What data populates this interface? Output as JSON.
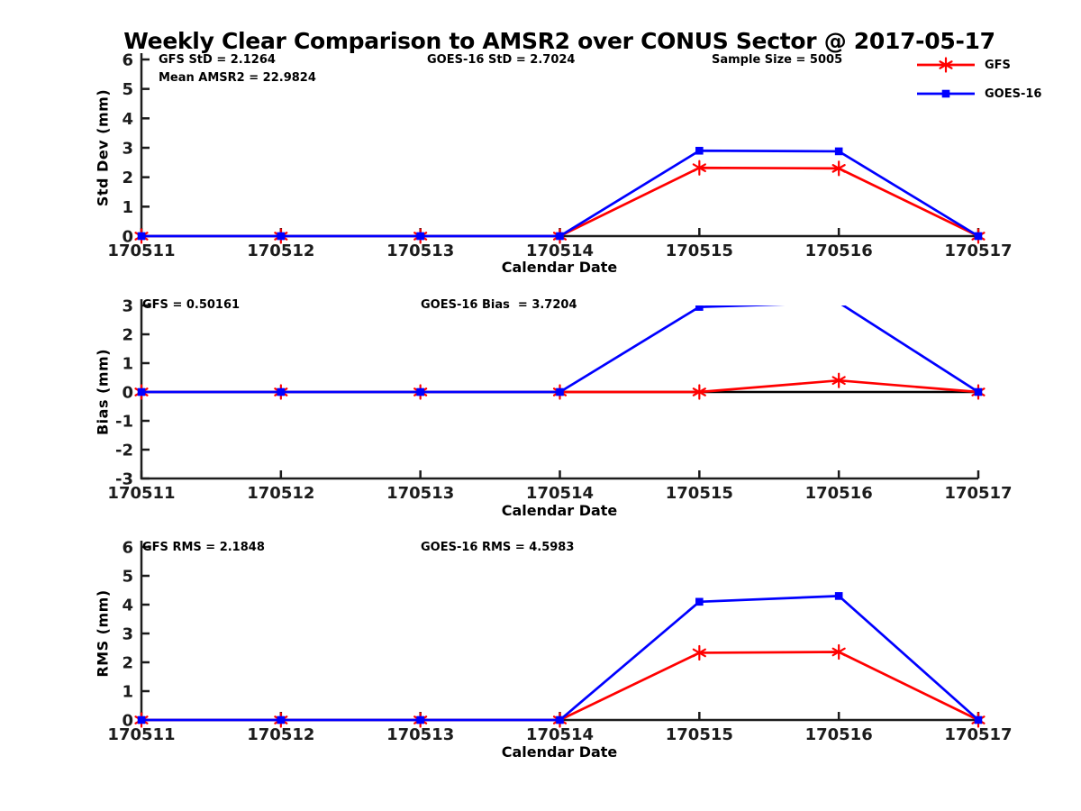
{
  "title": "Weekly Clear Comparison to AMSR2 over CONUS Sector @ 2017-05-17",
  "colors": {
    "gfs": "#ff0000",
    "goes16": "#0000ff",
    "axis": "#1c1c1c",
    "zero_line": "#000000",
    "background": "#ffffff"
  },
  "legend": {
    "entries": [
      {
        "label": "GFS",
        "color": "#ff0000",
        "marker": "asterisk"
      },
      {
        "label": "GOES-16",
        "color": "#0000ff",
        "marker": "square"
      }
    ]
  },
  "x_axis": {
    "label": "Calendar Date",
    "categories": [
      "170511",
      "170512",
      "170513",
      "170514",
      "170515",
      "170516",
      "170517"
    ]
  },
  "stats": {
    "gfs_std": 2.1264,
    "mean_amsr2": 22.9824,
    "goes16_std": 2.7024,
    "sample_size": 5005,
    "gfs_bias": 0.50161,
    "goes16_bias": 3.7204,
    "gfs_rms": 2.1848,
    "goes16_rms": 4.5983
  },
  "chart_data": [
    {
      "type": "line",
      "name": "std-dev",
      "ylabel": "Std Dev (mm)",
      "xlabel": "Calendar Date",
      "ylim": [
        0,
        6
      ],
      "yticks": [
        0,
        1,
        2,
        3,
        4,
        5,
        6
      ],
      "grid": false,
      "zero_line": false,
      "legend_position": "upper-right-outside",
      "annotations": [
        {
          "text": "GFS StD = 2.1264"
        },
        {
          "text": "Mean AMSR2 = 22.9824"
        },
        {
          "text": "GOES-16 StD = 2.7024"
        },
        {
          "text": "Sample Size = 5005"
        }
      ],
      "series": [
        {
          "name": "GFS",
          "color": "#ff0000",
          "marker": "asterisk",
          "values": [
            0,
            0,
            0,
            0,
            2.32,
            2.3,
            0
          ]
        },
        {
          "name": "GOES-16",
          "color": "#0000ff",
          "marker": "square",
          "values": [
            0,
            0,
            0,
            0,
            2.9,
            2.88,
            0
          ]
        }
      ]
    },
    {
      "type": "line",
      "name": "bias",
      "ylabel": "Bias (mm)",
      "xlabel": "Calendar Date",
      "ylim": [
        -3,
        3
      ],
      "yticks": [
        -3,
        -2,
        -1,
        0,
        1,
        2,
        3
      ],
      "grid": false,
      "zero_line": true,
      "annotations": [
        {
          "text": "GFS = 0.50161"
        },
        {
          "text": "GOES-16 Bias  = 3.7204"
        }
      ],
      "series": [
        {
          "name": "GFS",
          "color": "#ff0000",
          "marker": "asterisk",
          "values": [
            0,
            0,
            0,
            0,
            0,
            0.4,
            0
          ]
        },
        {
          "name": "GOES-16",
          "color": "#0000ff",
          "marker": "square",
          "values": [
            0,
            0,
            0,
            0,
            2.95,
            3.1,
            0
          ]
        }
      ]
    },
    {
      "type": "line",
      "name": "rms",
      "ylabel": "RMS (mm)",
      "xlabel": "Calendar Date",
      "ylim": [
        0,
        6
      ],
      "yticks": [
        0,
        1,
        2,
        3,
        4,
        5,
        6
      ],
      "grid": false,
      "zero_line": false,
      "annotations": [
        {
          "text": "GFS RMS = 2.1848"
        },
        {
          "text": "GOES-16 RMS = 4.5983"
        }
      ],
      "series": [
        {
          "name": "GFS",
          "color": "#ff0000",
          "marker": "asterisk",
          "values": [
            0,
            0,
            0,
            0,
            2.33,
            2.36,
            0
          ]
        },
        {
          "name": "GOES-16",
          "color": "#0000ff",
          "marker": "square",
          "values": [
            0,
            0,
            0,
            0,
            4.1,
            4.3,
            0
          ]
        }
      ]
    }
  ]
}
